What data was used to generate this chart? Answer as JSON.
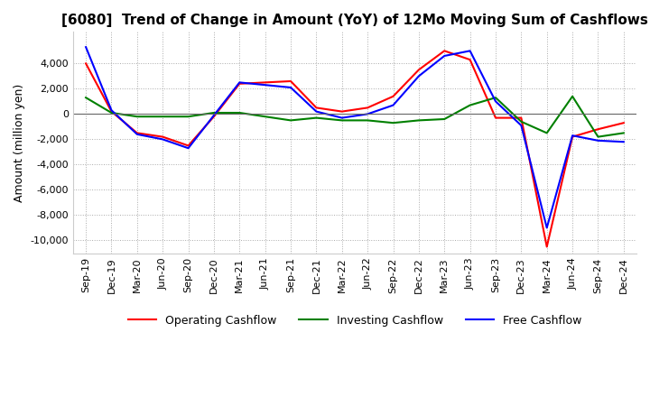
{
  "title": "[6080]  Trend of Change in Amount (YoY) of 12Mo Moving Sum of Cashflows",
  "ylabel": "Amount (million yen)",
  "x_labels": [
    "Sep-19",
    "Dec-19",
    "Mar-20",
    "Jun-20",
    "Sep-20",
    "Dec-20",
    "Mar-21",
    "Jun-21",
    "Sep-21",
    "Dec-21",
    "Mar-22",
    "Jun-22",
    "Sep-22",
    "Dec-22",
    "Mar-23",
    "Jun-23",
    "Sep-23",
    "Dec-23",
    "Mar-24",
    "Jun-24",
    "Sep-24",
    "Dec-24"
  ],
  "operating": [
    4000,
    200,
    -1500,
    -1800,
    -2500,
    -200,
    2400,
    2500,
    2600,
    500,
    200,
    500,
    1400,
    3500,
    5000,
    4300,
    -300,
    -300,
    -10500,
    -1800,
    -1200,
    -700
  ],
  "investing": [
    1300,
    100,
    -200,
    -200,
    -200,
    100,
    100,
    -200,
    -500,
    -300,
    -500,
    -500,
    -700,
    -500,
    -400,
    700,
    1300,
    -600,
    -1500,
    1400,
    -1800,
    -1500
  ],
  "free": [
    5300,
    300,
    -1600,
    -2000,
    -2700,
    -100,
    2500,
    2300,
    2100,
    200,
    -300,
    0,
    700,
    3000,
    4600,
    5000,
    1000,
    -900,
    -9000,
    -1700,
    -2100,
    -2200
  ],
  "ylim": [
    -11000,
    6500
  ],
  "yticks": [
    -10000,
    -8000,
    -6000,
    -4000,
    -2000,
    0,
    2000,
    4000
  ],
  "operating_color": "#ff0000",
  "investing_color": "#008000",
  "free_color": "#0000ff",
  "background_color": "#ffffff",
  "title_fontsize": 11,
  "axis_fontsize": 9,
  "tick_fontsize": 8
}
